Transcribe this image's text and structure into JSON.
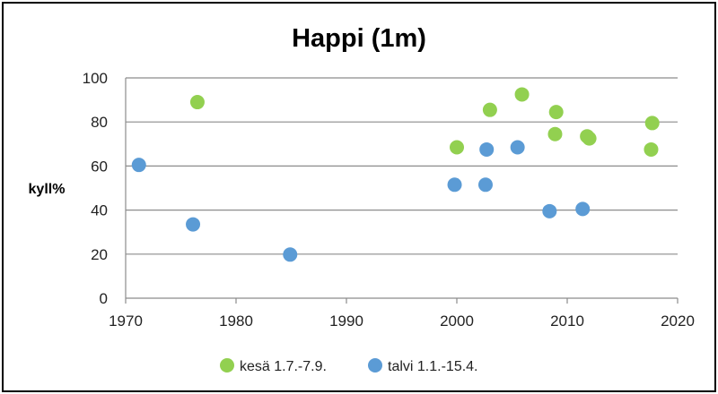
{
  "chart_data": {
    "type": "scatter",
    "title": "Happi (1m)",
    "ylabel": "kyll%",
    "xlabel": "",
    "xlim": [
      1970,
      2020
    ],
    "ylim": [
      0,
      100
    ],
    "xticks": [
      "1970",
      "1980",
      "1990",
      "2000",
      "2010",
      "2020"
    ],
    "yticks": [
      "0",
      "20",
      "40",
      "60",
      "80",
      "100"
    ],
    "grid": "horizontal",
    "legend": "bottom",
    "series": [
      {
        "name": "kesä 1.7.-7.9.",
        "color": "#92d050",
        "x": [
          1976.5,
          2000,
          2003,
          2005.9,
          2008.9,
          2009,
          2011.8,
          2012,
          2017.6,
          2017.7
        ],
        "y": [
          89,
          68.5,
          85.5,
          92.5,
          74.5,
          84.5,
          73.5,
          72.5,
          67.5,
          79.5
        ]
      },
      {
        "name": "talvi 1.1.-15.4.",
        "color": "#5b9bd5",
        "x": [
          1971.2,
          1976.1,
          1984.9,
          1999.8,
          2002.6,
          2002.7,
          2005.5,
          2008.4,
          2011.4
        ],
        "y": [
          60.5,
          33.5,
          19.8,
          51.5,
          51.5,
          67.5,
          68.5,
          39.5,
          40.5
        ]
      }
    ]
  }
}
